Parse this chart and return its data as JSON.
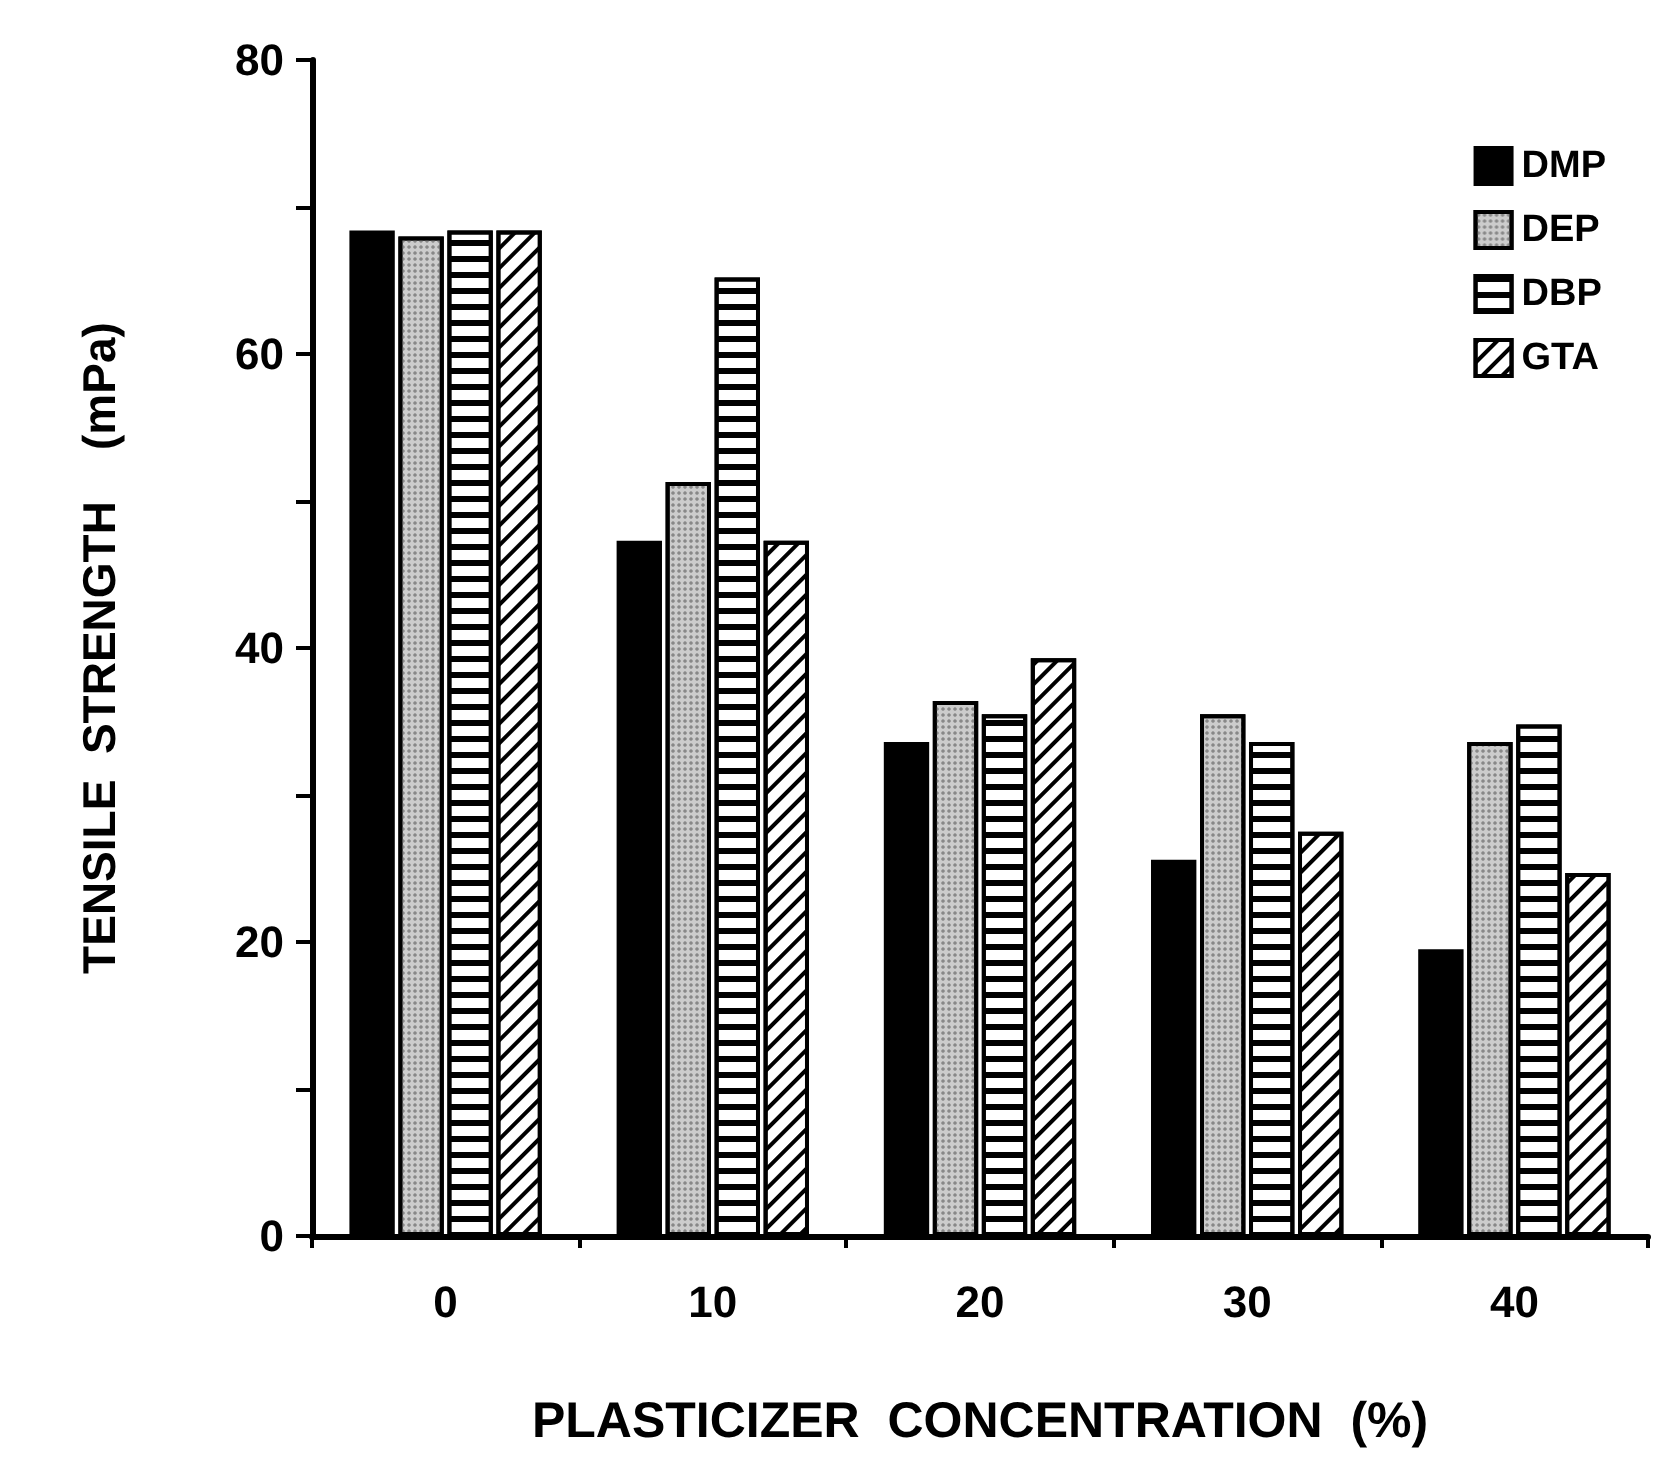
{
  "chart_data": {
    "type": "bar",
    "xlabel": "PLASTICIZER  CONCENTRATION  (%)",
    "ylabel": "TENSILE  STRENGTH    (mPa)",
    "categories": [
      "0",
      "10",
      "20",
      "30",
      "40"
    ],
    "series": [
      {
        "name": "DMP",
        "color": "#000000",
        "values": [
          68.4,
          47.3,
          33.6,
          25.6,
          19.5
        ]
      },
      {
        "name": "DEP",
        "color": "#cccccc",
        "values": [
          68,
          51.3,
          36.4,
          35.5,
          33.6
        ]
      },
      {
        "name": "DBP",
        "color": "#ffffff",
        "values": [
          68.4,
          65.2,
          35.5,
          33.6,
          34.8
        ]
      },
      {
        "name": "GTA",
        "color": "#ffffff",
        "values": [
          68.4,
          47.3,
          39.3,
          27.5,
          24.7
        ]
      }
    ],
    "ylim": [
      0,
      80
    ],
    "yticks": [
      0,
      {
        "value": 10,
        "label": null
      },
      20,
      {
        "value": 30,
        "label": null
      },
      40,
      {
        "value": 50,
        "label": null
      },
      60,
      {
        "value": 70,
        "label": null
      },
      80
    ],
    "legend": "top right",
    "grid": false
  }
}
